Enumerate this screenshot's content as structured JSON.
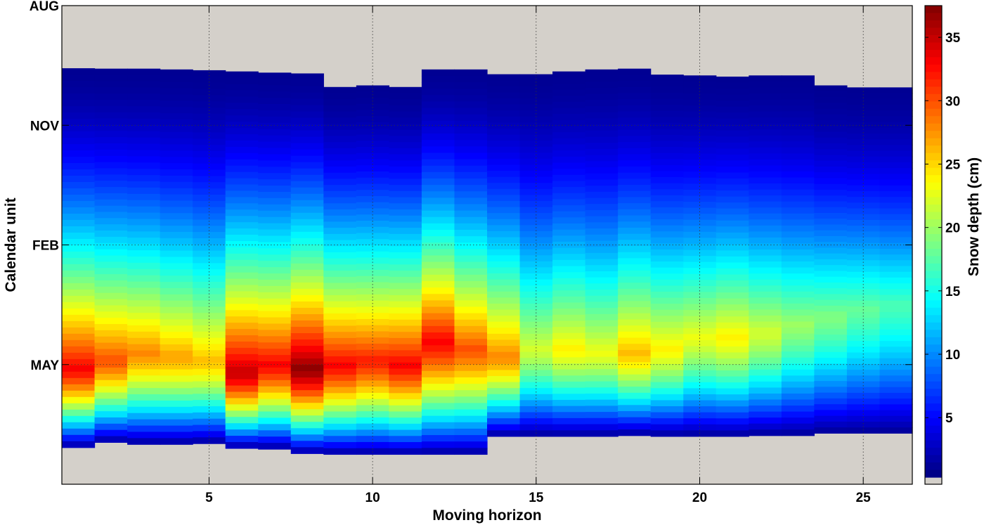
{
  "chart_data": {
    "type": "heatmap",
    "title": "",
    "xlabel": "Moving horizon",
    "ylabel": "Calendar unit",
    "colorbar_label": "Snow depth (cm)",
    "x_ticks": [
      5,
      10,
      15,
      20,
      25
    ],
    "x_range": [
      0.5,
      26.5
    ],
    "y_ticks": [
      "AUG",
      "NOV",
      "FEB",
      "MAY"
    ],
    "y_range_months": [
      0,
      12
    ],
    "colorbar_ticks": [
      5,
      10,
      15,
      20,
      25,
      30,
      35
    ],
    "colorbar_range": [
      0.3,
      37.5
    ],
    "colormap": "jet",
    "missing_color": "#d4d0ca",
    "grid": "dotted",
    "x": [
      1,
      2,
      3,
      4,
      5,
      6,
      7,
      8,
      9,
      10,
      11,
      12,
      13,
      14,
      15,
      16,
      17,
      18,
      19,
      20,
      21,
      22,
      23,
      24,
      25,
      26
    ],
    "season_start_months": [
      1.57,
      1.58,
      1.58,
      1.6,
      1.62,
      1.65,
      1.68,
      1.7,
      2.04,
      2.0,
      2.04,
      1.6,
      1.6,
      1.72,
      1.72,
      1.65,
      1.6,
      1.58,
      1.73,
      1.75,
      1.78,
      1.75,
      1.75,
      2.0,
      2.05,
      2.05
    ],
    "season_end_months": [
      11.08,
      10.95,
      11.0,
      11.0,
      10.98,
      11.1,
      11.12,
      11.23,
      11.25,
      11.25,
      11.25,
      11.25,
      11.25,
      10.8,
      10.8,
      10.8,
      10.8,
      10.78,
      10.8,
      10.8,
      10.8,
      10.78,
      10.78,
      10.72,
      10.72,
      10.72
    ],
    "peak_depth_cm": [
      33,
      30,
      28,
      27,
      26,
      35,
      33,
      37,
      33,
      32,
      33,
      33,
      30,
      28,
      22,
      24,
      23,
      26,
      24,
      23,
      24,
      22,
      20,
      19,
      18,
      17
    ],
    "peak_month": [
      9.1,
      8.9,
      8.7,
      8.8,
      8.9,
      9.2,
      9.0,
      9.1,
      9.0,
      8.9,
      9.0,
      8.4,
      8.6,
      8.8,
      8.6,
      8.6,
      8.7,
      8.7,
      8.6,
      8.3,
      8.3,
      8.2,
      8.0,
      7.8,
      7.6,
      7.5
    ]
  }
}
